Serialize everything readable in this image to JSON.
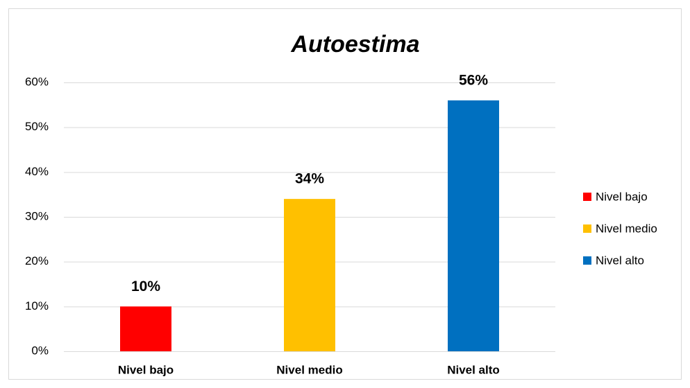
{
  "chart_data": {
    "type": "bar",
    "title": "Autoestima",
    "categories": [
      "Nivel bajo",
      "Nivel medio",
      "Nivel alto"
    ],
    "values": [
      10,
      34,
      56
    ],
    "value_labels": [
      "10%",
      "34%",
      "56%"
    ],
    "colors": [
      "#ff0000",
      "#ffc000",
      "#0070c0"
    ],
    "ylim": [
      0,
      60
    ],
    "yticks": [
      {
        "value": 0,
        "label": "0%"
      },
      {
        "value": 10,
        "label": "10%"
      },
      {
        "value": 20,
        "label": "20%"
      },
      {
        "value": 30,
        "label": "30%"
      },
      {
        "value": 40,
        "label": "40%"
      },
      {
        "value": 50,
        "label": "50%"
      },
      {
        "value": 60,
        "label": "60%"
      }
    ],
    "grid": true,
    "legend": "right"
  }
}
